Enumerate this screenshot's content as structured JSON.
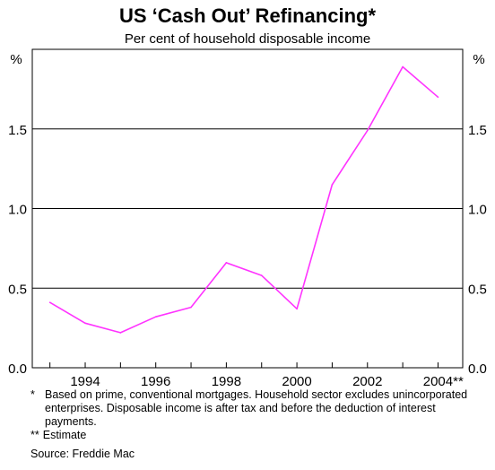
{
  "chart_data": {
    "type": "line",
    "title": "US ‘Cash Out’ Refinancing*",
    "subtitle": "Per cent of household disposable income",
    "y_unit_left": "%",
    "y_unit_right": "%",
    "ylim": [
      0,
      2.0
    ],
    "yticks": [
      "0.0",
      "0.5",
      "1.0",
      "1.5"
    ],
    "xlim": [
      1992.5,
      2004.7
    ],
    "xticks": [
      "1994",
      "1996",
      "1998",
      "2000",
      "2002",
      "2004**"
    ],
    "xtick_values": [
      1994,
      1996,
      1998,
      2000,
      2002,
      2004
    ],
    "grid": true,
    "series": [
      {
        "x": [
          1993,
          1994,
          1995,
          1996,
          1997,
          1998,
          1999,
          2000,
          2001,
          2002,
          2003,
          2004
        ],
        "values": [
          0.41,
          0.28,
          0.22,
          0.32,
          0.38,
          0.66,
          0.58,
          0.37,
          1.15,
          1.49,
          1.89,
          1.7
        ],
        "color": "#ff33ff"
      }
    ]
  },
  "notes": {
    "footnote_mark": "*",
    "footnote_text": "Based on prime, conventional mortgages. Household sector excludes unincorporated enterprises. Disposable income is after tax and before the deduction of interest payments.",
    "estimate_mark": "**",
    "estimate_text": "Estimate",
    "source": "Source: Freddie Mac"
  }
}
